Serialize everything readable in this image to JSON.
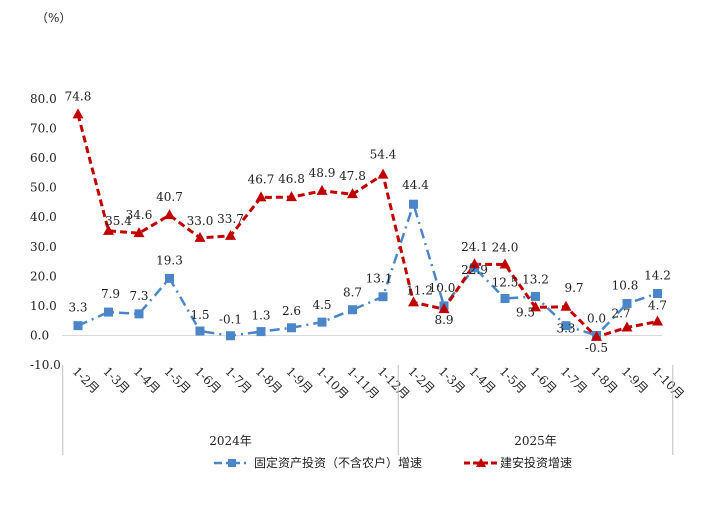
{
  "chart_data": {
    "type": "line",
    "unit_label": "（%）",
    "categories": [
      "1-2月",
      "1-3月",
      "1-4月",
      "1-5月",
      "1-6月",
      "1-7月",
      "1-8月",
      "1-9月",
      "1-10月",
      "1-11月",
      "1-12月",
      "1-2月",
      "1-3月",
      "1-4月",
      "1-5月",
      "1-6月",
      "1-7月",
      "1-8月",
      "1-9月",
      "1-10月"
    ],
    "year_groups": [
      {
        "label": "2024年",
        "start": 0,
        "end": 10
      },
      {
        "label": "2025年",
        "start": 11,
        "end": 19
      }
    ],
    "ylim": [
      -10,
      80
    ],
    "yticks": [
      "80.0",
      "70.0",
      "60.0",
      "50.0",
      "40.0",
      "30.0",
      "20.0",
      "10.0",
      "0.0",
      "-10.0"
    ],
    "series": [
      {
        "name": "固定资产投资（不含农户）增速",
        "color": "#4A86C8",
        "values": [
          3.3,
          7.9,
          7.3,
          19.3,
          1.5,
          -0.1,
          1.3,
          2.6,
          4.5,
          8.7,
          13.1,
          44.4,
          10.0,
          22.9,
          12.5,
          13.2,
          3.3,
          0.0,
          10.8,
          14.2
        ],
        "labels": [
          "3.3",
          "7.9",
          "7.3",
          "19.3",
          "1.5",
          "-0.1",
          "1.3",
          "2.6",
          "4.5",
          "8.7",
          "13.1",
          "44.4",
          "10.0",
          "22.9",
          "12.5",
          "13.2",
          "3.3",
          "0.0",
          "10.8",
          "14.2"
        ]
      },
      {
        "name": "建安投资增速",
        "color": "#C00000",
        "values": [
          74.8,
          35.4,
          34.6,
          40.7,
          33.0,
          33.7,
          46.7,
          46.8,
          48.9,
          47.8,
          54.4,
          11.2,
          8.9,
          24.1,
          24.0,
          9.5,
          9.7,
          -0.5,
          2.7,
          4.7
        ],
        "labels": [
          "74.8",
          "35.4",
          "34.6",
          "40.7",
          "33.0",
          "33.7",
          "46.7",
          "46.8",
          "48.9",
          "47.8",
          "54.4",
          "11.2",
          "8.9",
          "24.1",
          "24.0",
          "9.5",
          "9.7",
          "-0.5",
          "2.7",
          "4.7"
        ]
      }
    ],
    "legend": "bottom-center"
  }
}
